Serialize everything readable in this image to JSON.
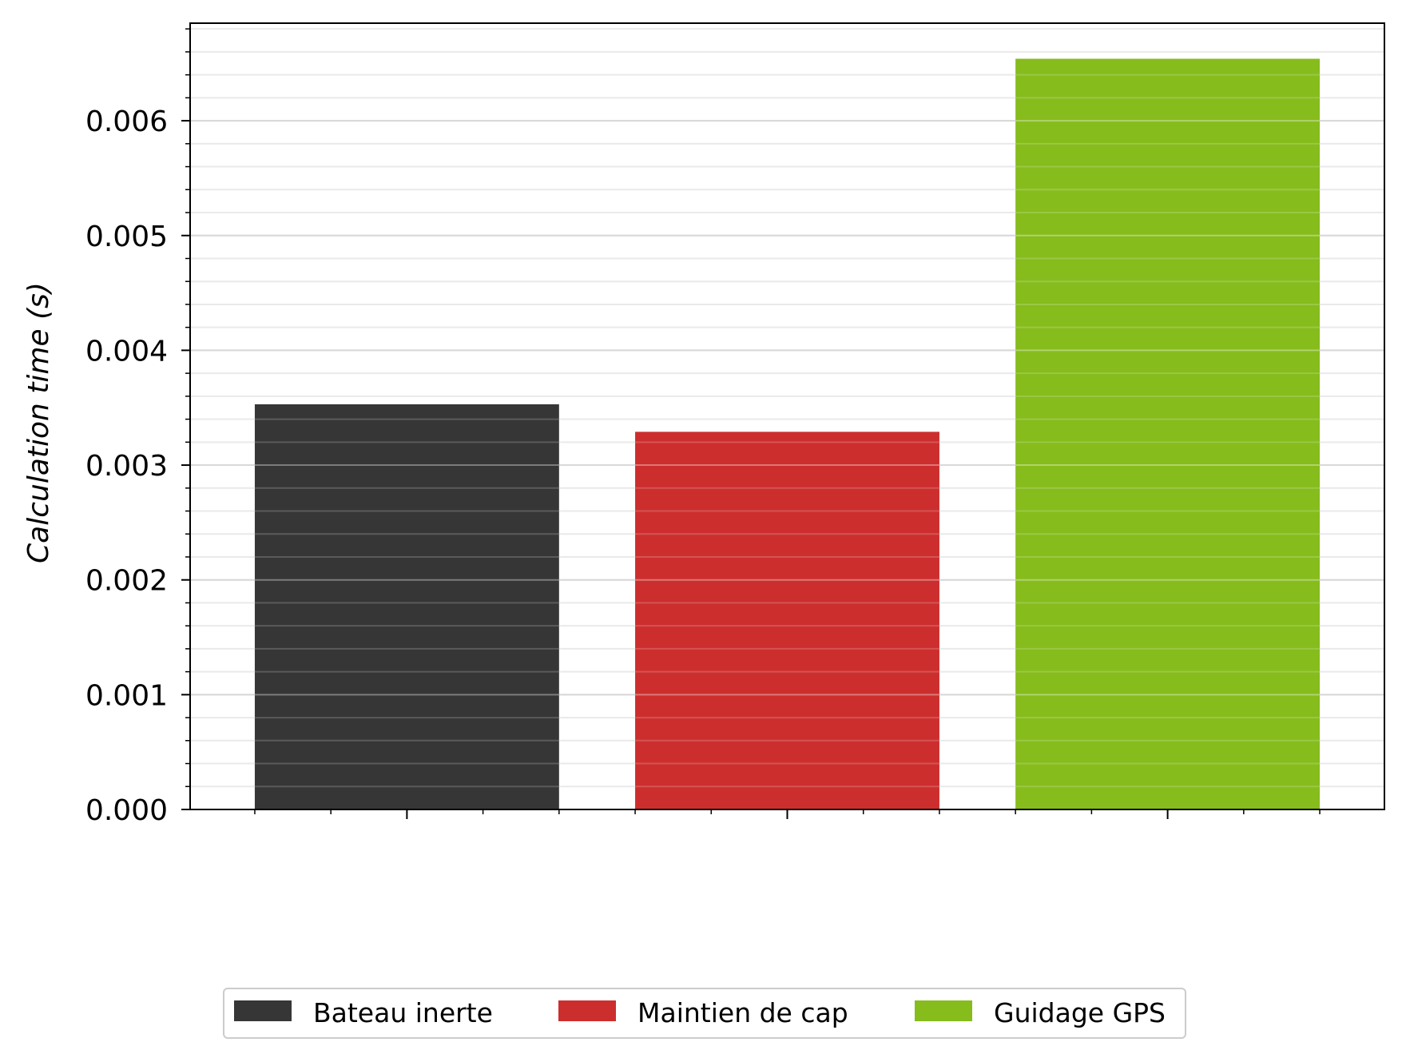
{
  "chart_data": {
    "type": "bar",
    "categories": [
      "Bateau inerte",
      "Maintien de cap",
      "Guidage GPS"
    ],
    "values": [
      0.00353,
      0.00329,
      0.00654
    ],
    "colors": [
      "#363636",
      "#cc2e2e",
      "#86bc1c"
    ],
    "title": "",
    "xlabel": "",
    "ylabel": "Calculation time (s)",
    "ylim": [
      0,
      0.00685
    ],
    "yticks": [
      "0.000",
      "0.001",
      "0.002",
      "0.003",
      "0.004",
      "0.005",
      "0.006"
    ],
    "grid": true,
    "minor_grid": true,
    "legend": {
      "placement": "bottom-center",
      "entries": [
        "Bateau inerte",
        "Maintien de cap",
        "Guidage GPS"
      ]
    }
  }
}
